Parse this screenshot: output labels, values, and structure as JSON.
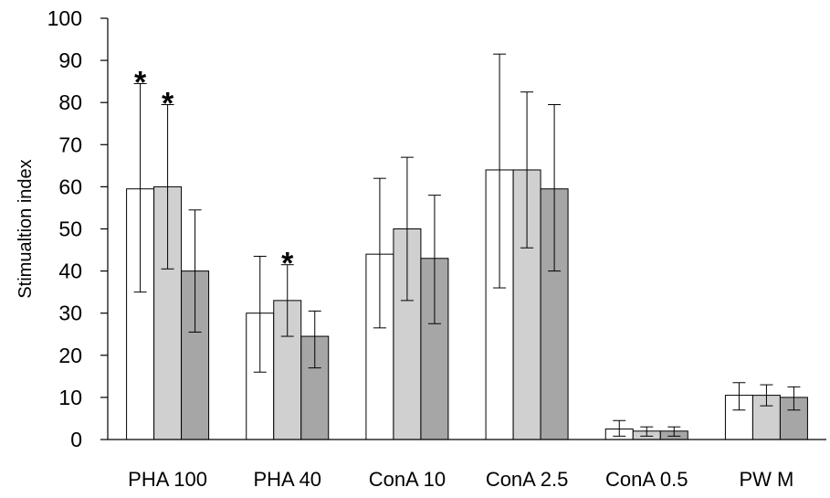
{
  "chart_data": {
    "type": "bar",
    "ylabel": "Stimualtion index",
    "ylim": [
      0,
      100
    ],
    "yticks": [
      0,
      10,
      20,
      30,
      40,
      50,
      60,
      70,
      80,
      90,
      100
    ],
    "categories": [
      "PHA 100",
      "PHA 40",
      "ConA 10",
      "ConA 2.5",
      "ConA 0.5",
      "PWM"
    ],
    "category_labels": [
      "PHA 100",
      "PHA 40",
      "ConA 10",
      "ConA 2.5",
      "ConA 0.5",
      "PW M"
    ],
    "series": [
      {
        "color": "#ffffff",
        "values": [
          59.5,
          30,
          44,
          64,
          2.5,
          10.5
        ],
        "error_low": [
          35,
          16,
          26.5,
          36,
          0.8,
          7
        ],
        "error_high": [
          84.5,
          43.5,
          62,
          91.5,
          4.5,
          13.5
        ],
        "significant": [
          true,
          false,
          false,
          false,
          false,
          false
        ]
      },
      {
        "color": "#d0d0d0",
        "values": [
          60,
          33,
          50,
          64,
          2,
          10.5
        ],
        "error_low": [
          40.5,
          24.5,
          33,
          45.5,
          0.8,
          8
        ],
        "error_high": [
          79.5,
          41.5,
          67,
          82.5,
          3,
          13
        ],
        "significant": [
          true,
          true,
          false,
          false,
          false,
          false
        ]
      },
      {
        "color": "#a6a6a6",
        "values": [
          40,
          24.5,
          43,
          59.5,
          2,
          10
        ],
        "error_low": [
          25.5,
          17,
          27.5,
          40,
          0.8,
          7
        ],
        "error_high": [
          54.5,
          30.5,
          58,
          79.5,
          3,
          12.5
        ],
        "significant": [
          false,
          false,
          false,
          false,
          false,
          false
        ]
      }
    ],
    "significance_symbol": "*",
    "grid": false,
    "legend": "none"
  }
}
